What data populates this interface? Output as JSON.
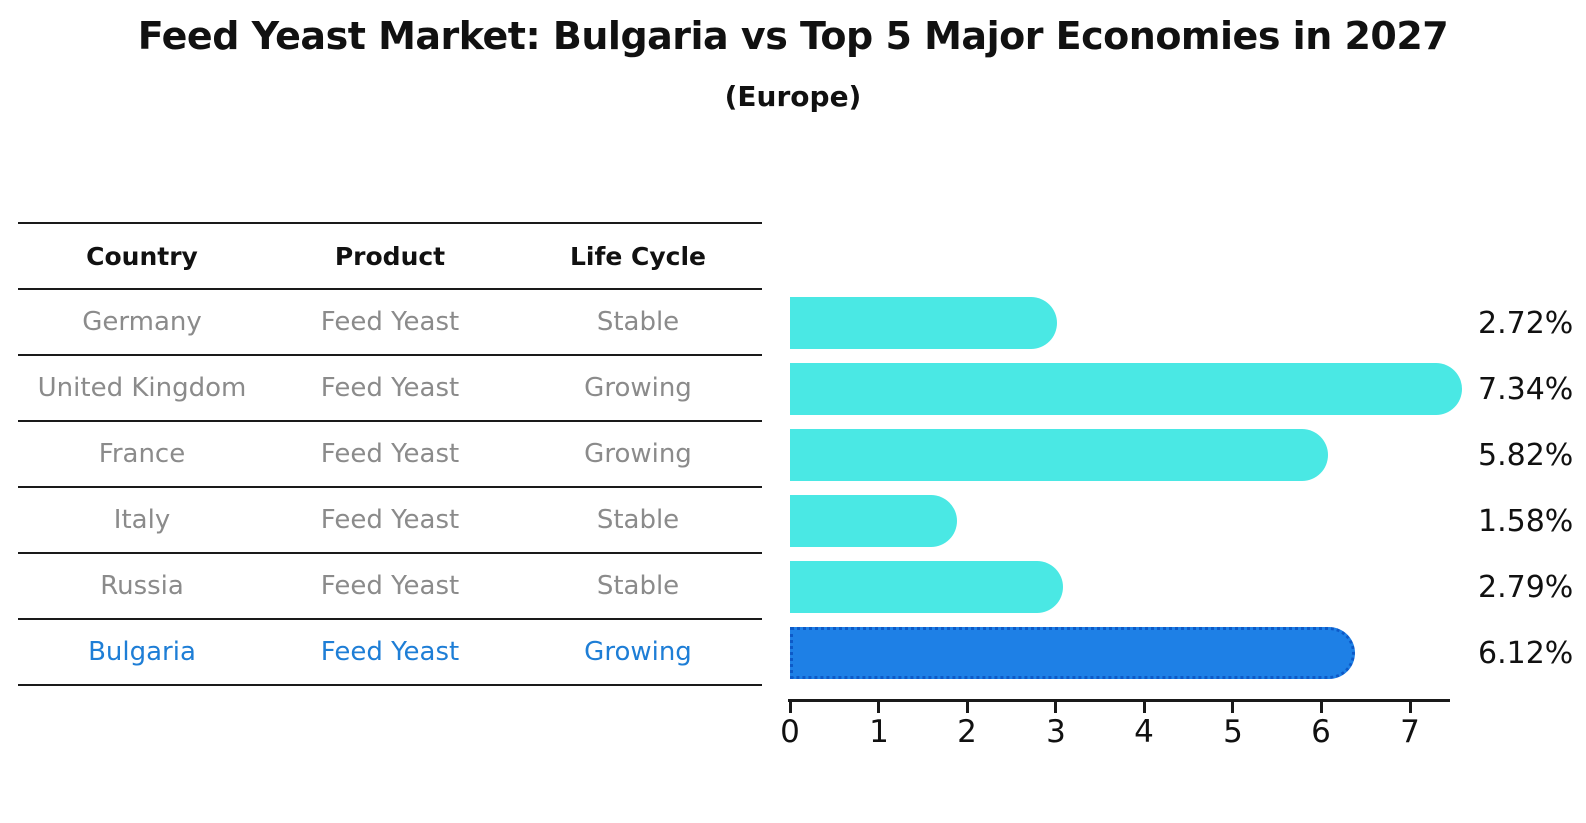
{
  "title": "Feed Yeast Market: Bulgaria vs Top 5 Major Economies in 2027",
  "subtitle": "(Europe)",
  "table": {
    "headers": [
      "Country",
      "Product",
      "Life Cycle"
    ],
    "rows": [
      {
        "country": "Germany",
        "product": "Feed Yeast",
        "life_cycle": "Stable",
        "highlighted": false
      },
      {
        "country": "United Kingdom",
        "product": "Feed Yeast",
        "life_cycle": "Growing",
        "highlighted": false
      },
      {
        "country": "France",
        "product": "Feed Yeast",
        "life_cycle": "Growing",
        "highlighted": false
      },
      {
        "country": "Italy",
        "product": "Feed Yeast",
        "life_cycle": "Stable",
        "highlighted": false
      },
      {
        "country": "Russia",
        "product": "Feed Yeast",
        "life_cycle": "Stable",
        "highlighted": false
      },
      {
        "country": "Bulgaria",
        "product": "Feed Yeast",
        "life_cycle": "Growing",
        "highlighted": true
      }
    ]
  },
  "chart_data": {
    "type": "bar",
    "orientation": "horizontal",
    "title": "Feed Yeast Market: Bulgaria vs Top 5 Major Economies in 2027",
    "subtitle": "(Europe)",
    "categories": [
      "Germany",
      "United Kingdom",
      "France",
      "Italy",
      "Russia",
      "Bulgaria"
    ],
    "values": [
      2.72,
      7.34,
      5.82,
      1.58,
      2.79,
      6.12
    ],
    "value_labels": [
      "2.72%",
      "7.34%",
      "5.82%",
      "1.58%",
      "2.79%",
      "6.12%"
    ],
    "x_ticks": [
      "0",
      "1",
      "2",
      "3",
      "4",
      "5",
      "6",
      "7"
    ],
    "xlim": [
      0,
      7.5
    ],
    "xlabel": "",
    "ylabel": "",
    "grid": false,
    "legend": "none",
    "highlight_index": 5,
    "bar_color": "#4ae8e4",
    "highlight_color": "#1e80e6",
    "highlight_border_color": "#0d5ac8",
    "highlight_text_color": "#1e7ed6",
    "row_text_color": "#8b8b8b"
  }
}
